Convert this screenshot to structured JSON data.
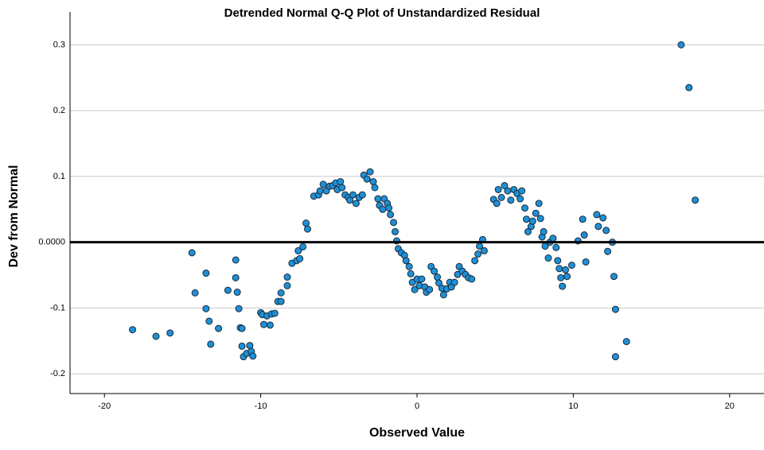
{
  "chart_data": {
    "type": "scatter",
    "title": "Detrended Normal Q-Q Plot of Unstandardized Residual",
    "xlabel": "Observed Value",
    "ylabel": "Dev from Normal",
    "xlim": [
      -22.2,
      22.2
    ],
    "ylim": [
      -0.23,
      0.35
    ],
    "xticks": [
      -20,
      -10,
      0,
      10,
      20
    ],
    "yticks": [
      0.3,
      0.2,
      0.1,
      {
        "value": 0,
        "label": "0.0000"
      },
      -0.1,
      -0.2
    ],
    "grid": true,
    "reference_line": {
      "y": 0
    },
    "color": "#1e90d6",
    "x": [
      -18.2,
      -16.7,
      -15.8,
      -14.4,
      -14.2,
      -13.5,
      -13.5,
      -13.3,
      -13.2,
      -12.7,
      -12.1,
      -11.6,
      -11.6,
      -11.5,
      -11.4,
      -11.3,
      -11.2,
      -11.2,
      -11.1,
      -10.9,
      -10.7,
      -10.6,
      -10.5,
      -10.0,
      -9.9,
      -9.8,
      -9.6,
      -9.4,
      -9.3,
      -9.1,
      -8.9,
      -8.7,
      -8.7,
      -8.3,
      -8.3,
      -8.0,
      -7.7,
      -7.6,
      -7.5,
      -7.3,
      -7.1,
      -7.0,
      -6.6,
      -6.3,
      -6.2,
      -6.0,
      -5.8,
      -5.6,
      -5.4,
      -5.2,
      -5.1,
      -4.9,
      -4.8,
      -4.6,
      -4.4,
      -4.3,
      -4.1,
      -3.9,
      -3.7,
      -3.5,
      -3.4,
      -3.2,
      -3.0,
      -2.8,
      -2.7,
      -2.5,
      -2.4,
      -2.2,
      -2.1,
      -1.9,
      -1.8,
      -1.7,
      -1.5,
      -1.4,
      -1.3,
      -1.2,
      -1.0,
      -0.8,
      -0.7,
      -0.5,
      -0.4,
      -0.3,
      -0.15,
      0,
      0.15,
      0.3,
      0.5,
      0.6,
      0.8,
      0.9,
      1.1,
      1.3,
      1.4,
      1.6,
      1.7,
      1.9,
      2.1,
      2.2,
      2.4,
      2.6,
      2.7,
      2.9,
      3.1,
      3.3,
      3.5,
      3.7,
      3.9,
      4.0,
      4.2,
      4.3,
      4.9,
      5.1,
      5.2,
      5.4,
      5.6,
      5.8,
      6.0,
      6.2,
      6.4,
      6.6,
      6.7,
      6.9,
      7.0,
      7.1,
      7.3,
      7.4,
      7.6,
      7.8,
      7.9,
      8.0,
      8.1,
      8.2,
      8.4,
      8.5,
      8.7,
      8.9,
      9.0,
      9.1,
      9.2,
      9.3,
      9.5,
      9.6,
      9.9,
      10.3,
      10.6,
      10.7,
      10.8,
      11.5,
      11.6,
      11.9,
      12.1,
      12.2,
      12.5,
      12.6,
      12.7,
      12.7,
      13.4,
      16.9,
      17.4,
      17.8
    ],
    "y": [
      -0.133,
      -0.143,
      -0.138,
      -0.016,
      -0.077,
      -0.047,
      -0.101,
      -0.12,
      -0.155,
      -0.131,
      -0.073,
      -0.027,
      -0.054,
      -0.076,
      -0.101,
      -0.13,
      -0.131,
      -0.158,
      -0.174,
      -0.169,
      -0.157,
      -0.166,
      -0.173,
      -0.107,
      -0.11,
      -0.125,
      -0.112,
      -0.126,
      -0.109,
      -0.108,
      -0.09,
      -0.09,
      -0.077,
      -0.053,
      -0.066,
      -0.032,
      -0.028,
      -0.013,
      -0.025,
      -0.007,
      0.029,
      0.02,
      0.07,
      0.072,
      0.078,
      0.088,
      0.078,
      0.085,
      0.086,
      0.09,
      0.08,
      0.092,
      0.083,
      0.072,
      0.068,
      0.064,
      0.072,
      0.059,
      0.068,
      0.072,
      0.102,
      0.096,
      0.107,
      0.092,
      0.083,
      0.066,
      0.056,
      0.05,
      0.066,
      0.059,
      0.052,
      0.042,
      0.03,
      0.016,
      0.002,
      -0.01,
      -0.016,
      -0.02,
      -0.028,
      -0.037,
      -0.048,
      -0.061,
      -0.072,
      -0.056,
      -0.066,
      -0.056,
      -0.068,
      -0.076,
      -0.072,
      -0.037,
      -0.044,
      -0.053,
      -0.062,
      -0.07,
      -0.08,
      -0.071,
      -0.061,
      -0.068,
      -0.061,
      -0.049,
      -0.037,
      -0.044,
      -0.049,
      -0.054,
      -0.056,
      -0.028,
      -0.018,
      -0.006,
      0.004,
      -0.013,
      0.065,
      0.059,
      0.08,
      0.068,
      0.086,
      0.078,
      0.064,
      0.08,
      0.074,
      0.066,
      0.078,
      0.052,
      0.035,
      0.016,
      0.024,
      0.032,
      0.044,
      0.059,
      0.036,
      0.008,
      0.016,
      -0.006,
      -0.024,
      0.0,
      0.006,
      -0.008,
      -0.028,
      -0.04,
      -0.054,
      -0.067,
      -0.042,
      -0.052,
      -0.035,
      0.002,
      0.035,
      0.011,
      -0.03,
      0.042,
      0.024,
      0.037,
      0.018,
      -0.014,
      0.0,
      -0.052,
      -0.102,
      -0.174,
      -0.151,
      0.3,
      0.235,
      0.064
    ]
  }
}
